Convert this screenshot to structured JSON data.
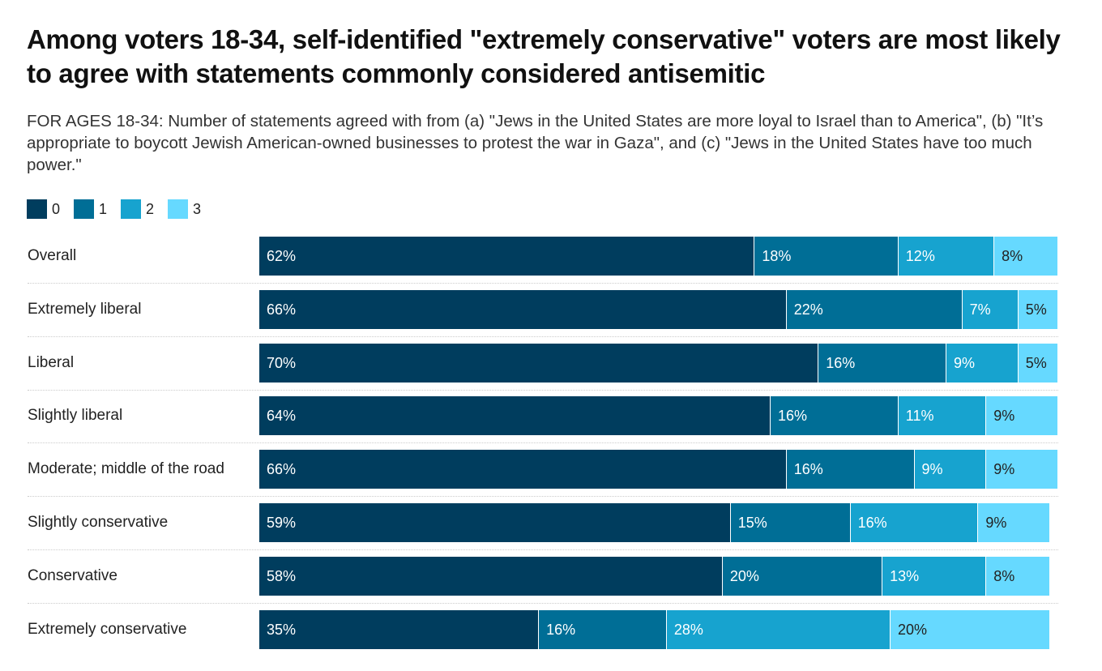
{
  "chart_data": {
    "type": "bar",
    "orientation": "horizontal-stacked",
    "title": "Among voters 18-34, self-identified \"extremely conservative\" voters are most likely to agree with statements commonly considered antisemitic",
    "subtitle": "FOR AGES 18-34: Number of statements agreed with from (a) \"Jews in the United States are more loyal to Israel than to America\", (b) \"It’s appropriate to boycott Jewish American-owned businesses to protest the war in Gaza\", and (c) \"Jews in the United States have too much power.\"",
    "categories": [
      "Overall",
      "Extremely liberal",
      "Liberal",
      "Slightly liberal",
      "Moderate; middle of the road",
      "Slightly conservative",
      "Conservative",
      "Extremely conservative"
    ],
    "series": [
      {
        "name": "0",
        "color": "#003d5e",
        "values": [
          62,
          66,
          70,
          64,
          66,
          59,
          58,
          35
        ]
      },
      {
        "name": "1",
        "color": "#006e96",
        "values": [
          18,
          22,
          16,
          16,
          16,
          15,
          20,
          16
        ]
      },
      {
        "name": "2",
        "color": "#17a3cf",
        "values": [
          12,
          7,
          9,
          11,
          9,
          16,
          13,
          28
        ]
      },
      {
        "name": "3",
        "color": "#66d9ff",
        "values": [
          8,
          5,
          5,
          9,
          9,
          9,
          8,
          20
        ]
      }
    ],
    "unit": "%",
    "xlim": [
      0,
      100
    ],
    "legend_position": "top-left"
  }
}
